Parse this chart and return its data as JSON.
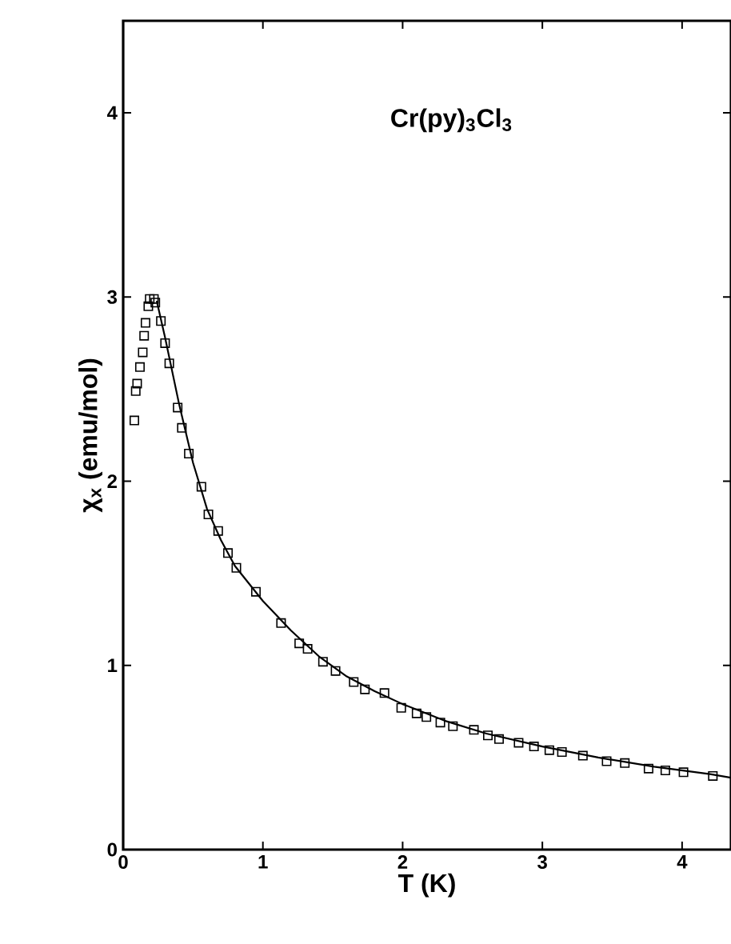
{
  "chart_data": {
    "type": "scatter",
    "xlabel": "T (K)",
    "ylabel": "χ$_{x}$ (emu/mol)",
    "annotations": [
      "Cr(py)$_{3}$Cl$_{3}$"
    ],
    "xlim": [
      0,
      4.35
    ],
    "ylim": [
      0,
      4.5
    ],
    "xticks": [
      0,
      1,
      2,
      3,
      4
    ],
    "yticks": [
      0,
      1,
      2,
      3,
      4
    ],
    "grid": false,
    "series": [
      {
        "marker": "square",
        "color": "#000000",
        "x": [
          0.08,
          0.09,
          0.1,
          0.12,
          0.14,
          0.15,
          0.16,
          0.18,
          0.19,
          0.22,
          0.23,
          0.27,
          0.3,
          0.33,
          0.39,
          0.42,
          0.47,
          0.56,
          0.61,
          0.68,
          0.75,
          0.81,
          0.95,
          1.13,
          1.26,
          1.32,
          1.43,
          1.52,
          1.65,
          1.73,
          1.87,
          1.99,
          2.1,
          2.17,
          2.27,
          2.36,
          2.51,
          2.61,
          2.69,
          2.83,
          2.94,
          3.05,
          3.14,
          3.29,
          3.46,
          3.59,
          3.76,
          3.88,
          4.01,
          4.22
        ],
        "values": [
          2.33,
          2.49,
          2.53,
          2.62,
          2.7,
          2.79,
          2.86,
          2.95,
          2.99,
          2.99,
          2.97,
          2.87,
          2.75,
          2.64,
          2.4,
          2.29,
          2.15,
          1.97,
          1.82,
          1.73,
          1.61,
          1.53,
          1.4,
          1.23,
          1.12,
          1.09,
          1.02,
          0.97,
          0.91,
          0.87,
          0.85,
          0.77,
          0.74,
          0.72,
          0.69,
          0.67,
          0.65,
          0.62,
          0.6,
          0.58,
          0.56,
          0.54,
          0.53,
          0.51,
          0.48,
          0.47,
          0.44,
          0.43,
          0.42,
          0.4
        ]
      },
      {
        "type": "line",
        "marker": "none",
        "line_style": "solid",
        "color": "#000000",
        "x": [
          0.24,
          0.3,
          0.4,
          0.5,
          0.6,
          0.7,
          0.8,
          1.0,
          1.2,
          1.4,
          1.6,
          1.8,
          2.0,
          2.3,
          2.6,
          3.0,
          3.4,
          3.8,
          4.2,
          4.35
        ],
        "values": [
          2.98,
          2.78,
          2.42,
          2.1,
          1.85,
          1.68,
          1.54,
          1.35,
          1.19,
          1.05,
          0.94,
          0.86,
          0.79,
          0.7,
          0.63,
          0.56,
          0.5,
          0.45,
          0.41,
          0.39
        ]
      }
    ]
  }
}
